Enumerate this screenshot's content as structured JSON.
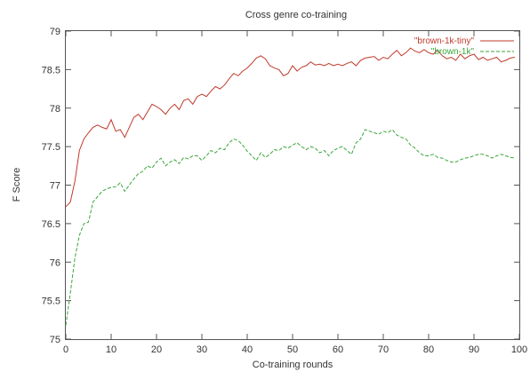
{
  "chart_data": {
    "type": "line",
    "title": "Cross genre co-training",
    "xlabel": "Co-training rounds",
    "ylabel": "F Score",
    "xlim": [
      0,
      100
    ],
    "ylim": [
      75,
      79
    ],
    "xticks": [
      "0",
      "10",
      "20",
      "30",
      "40",
      "50",
      "60",
      "70",
      "80",
      "90",
      "100"
    ],
    "yticks": [
      "75",
      "75.5",
      "76",
      "76.5",
      "77",
      "77.5",
      "78",
      "78.5",
      "79"
    ],
    "grid": false,
    "legend": "top-right",
    "series": [
      {
        "name": "\"brown-1k-tiny\"",
        "color": "#c0392b",
        "dash": "solid",
        "x": [
          0,
          1,
          2,
          3,
          4,
          5,
          6,
          7,
          8,
          9,
          10,
          11,
          12,
          13,
          14,
          15,
          16,
          17,
          18,
          19,
          20,
          21,
          22,
          23,
          24,
          25,
          26,
          27,
          28,
          29,
          30,
          31,
          32,
          33,
          34,
          35,
          36,
          37,
          38,
          39,
          40,
          41,
          42,
          43,
          44,
          45,
          46,
          47,
          48,
          49,
          50,
          51,
          52,
          53,
          54,
          55,
          56,
          57,
          58,
          59,
          60,
          61,
          62,
          63,
          64,
          65,
          66,
          67,
          68,
          69,
          70,
          71,
          72,
          73,
          74,
          75,
          76,
          77,
          78,
          79,
          80,
          81,
          82,
          83,
          84,
          85,
          86,
          87,
          88,
          89,
          90,
          91,
          92,
          93,
          94,
          95,
          96,
          97,
          98,
          99
        ],
        "values": [
          76.72,
          76.78,
          77.05,
          77.45,
          77.6,
          77.68,
          77.75,
          77.78,
          77.75,
          77.73,
          77.85,
          77.7,
          77.72,
          77.62,
          77.75,
          77.88,
          77.92,
          77.85,
          77.95,
          78.05,
          78.02,
          77.98,
          77.92,
          78.0,
          78.05,
          77.98,
          78.1,
          78.12,
          78.05,
          78.15,
          78.18,
          78.15,
          78.22,
          78.28,
          78.25,
          78.3,
          78.38,
          78.45,
          78.42,
          78.48,
          78.52,
          78.58,
          78.65,
          78.68,
          78.64,
          78.55,
          78.52,
          78.5,
          78.42,
          78.45,
          78.55,
          78.48,
          78.53,
          78.55,
          78.6,
          78.56,
          78.57,
          78.55,
          78.58,
          78.55,
          78.57,
          78.55,
          78.58,
          78.6,
          78.55,
          78.62,
          78.65,
          78.66,
          78.67,
          78.62,
          78.66,
          78.64,
          78.7,
          78.75,
          78.68,
          78.72,
          78.78,
          78.74,
          78.72,
          78.76,
          78.72,
          78.7,
          78.75,
          78.68,
          78.64,
          78.66,
          78.62,
          78.7,
          78.64,
          78.68,
          78.7,
          78.63,
          78.66,
          78.62,
          78.64,
          78.66,
          78.6,
          78.62,
          78.65,
          78.66
        ]
      },
      {
        "name": "\"brown-1k\"",
        "color": "#3aa63a",
        "dash": "dashed",
        "x": [
          0,
          1,
          2,
          3,
          4,
          5,
          6,
          7,
          8,
          9,
          10,
          11,
          12,
          13,
          14,
          15,
          16,
          17,
          18,
          19,
          20,
          21,
          22,
          23,
          24,
          25,
          26,
          27,
          28,
          29,
          30,
          31,
          32,
          33,
          34,
          35,
          36,
          37,
          38,
          39,
          40,
          41,
          42,
          43,
          44,
          45,
          46,
          47,
          48,
          49,
          50,
          51,
          52,
          53,
          54,
          55,
          56,
          57,
          58,
          59,
          60,
          61,
          62,
          63,
          64,
          65,
          66,
          67,
          68,
          69,
          70,
          71,
          72,
          73,
          74,
          75,
          76,
          77,
          78,
          79,
          80,
          81,
          82,
          83,
          84,
          85,
          86,
          87,
          88,
          89,
          90,
          91,
          92,
          93,
          94,
          95,
          96,
          97,
          98,
          99
        ],
        "values": [
          75.18,
          75.6,
          76.05,
          76.35,
          76.5,
          76.52,
          76.78,
          76.85,
          76.92,
          76.95,
          76.97,
          76.98,
          77.03,
          76.92,
          77.0,
          77.08,
          77.15,
          77.18,
          77.25,
          77.22,
          77.3,
          77.35,
          77.25,
          77.3,
          77.33,
          77.28,
          77.36,
          77.34,
          77.38,
          77.38,
          77.32,
          77.38,
          77.45,
          77.42,
          77.48,
          77.46,
          77.55,
          77.6,
          77.58,
          77.52,
          77.44,
          77.38,
          77.32,
          77.42,
          77.36,
          77.4,
          77.46,
          77.45,
          77.5,
          77.48,
          77.52,
          77.55,
          77.5,
          77.46,
          77.5,
          77.48,
          77.42,
          77.45,
          77.38,
          77.45,
          77.48,
          77.5,
          77.45,
          77.4,
          77.55,
          77.6,
          77.72,
          77.7,
          77.68,
          77.66,
          77.7,
          77.68,
          77.72,
          77.65,
          77.62,
          77.6,
          77.52,
          77.48,
          77.42,
          77.38,
          77.38,
          77.4,
          77.36,
          77.35,
          77.32,
          77.3,
          77.3,
          77.33,
          77.35,
          77.36,
          77.38,
          77.4,
          77.4,
          77.38,
          77.35,
          77.38,
          77.4,
          77.38,
          77.36,
          77.35
        ]
      }
    ]
  }
}
